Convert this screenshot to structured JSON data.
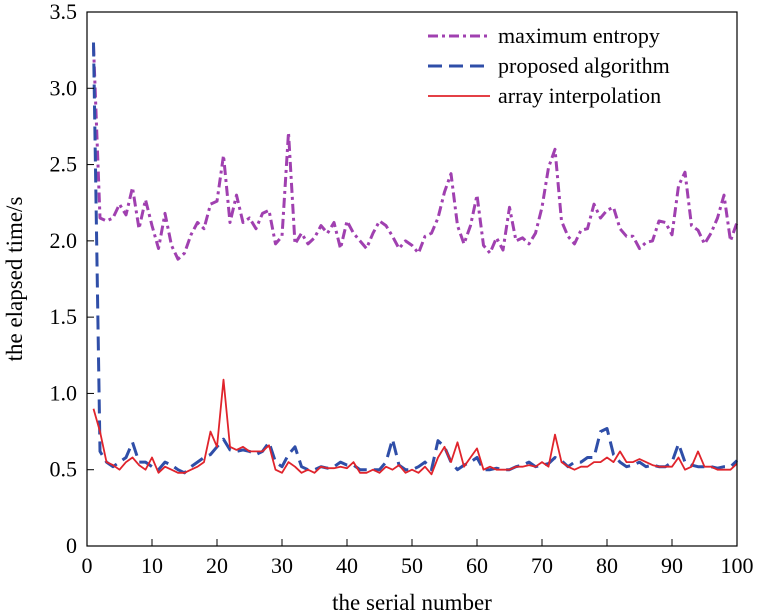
{
  "chart_data": {
    "type": "line",
    "title": "",
    "xlabel": "the serial number",
    "ylabel": "the elapsed time/s",
    "xlim": [
      0,
      100
    ],
    "ylim": [
      0,
      3.5
    ],
    "xticks": [
      0,
      10,
      20,
      30,
      40,
      50,
      60,
      70,
      80,
      90,
      100
    ],
    "xtick_labels": [
      "0",
      "10",
      "20",
      "30",
      "40",
      "50",
      "60",
      "70",
      "80",
      "90",
      "100"
    ],
    "yticks": [
      0,
      0.5,
      1.0,
      1.5,
      2.0,
      2.5,
      3.0,
      3.5
    ],
    "ytick_labels": [
      "0",
      "0.5",
      "1.0",
      "1.5",
      "2.0",
      "2.5",
      "3.0",
      "3.5"
    ],
    "grid": false,
    "legend": "top-right",
    "x": [
      1,
      2,
      3,
      4,
      5,
      6,
      7,
      8,
      9,
      10,
      11,
      12,
      13,
      14,
      15,
      16,
      17,
      18,
      19,
      20,
      21,
      22,
      23,
      24,
      25,
      26,
      27,
      28,
      29,
      30,
      31,
      32,
      33,
      34,
      35,
      36,
      37,
      38,
      39,
      40,
      41,
      42,
      43,
      44,
      45,
      46,
      47,
      48,
      49,
      50,
      51,
      52,
      53,
      54,
      55,
      56,
      57,
      58,
      59,
      60,
      61,
      62,
      63,
      64,
      65,
      66,
      67,
      68,
      69,
      70,
      71,
      72,
      73,
      74,
      75,
      76,
      77,
      78,
      79,
      80,
      81,
      82,
      83,
      84,
      85,
      86,
      87,
      88,
      89,
      90,
      91,
      92,
      93,
      94,
      95,
      96,
      97,
      98,
      99,
      100
    ],
    "series": [
      {
        "name": "maximum entropy",
        "color": "#a040b0",
        "dash": "dashdot",
        "values": [
          3.28,
          2.15,
          2.13,
          2.15,
          2.24,
          2.17,
          2.35,
          2.08,
          2.27,
          2.1,
          1.95,
          2.18,
          1.97,
          1.88,
          1.92,
          2.04,
          2.12,
          2.08,
          2.24,
          2.26,
          2.56,
          2.12,
          2.3,
          2.12,
          2.15,
          2.08,
          2.18,
          2.2,
          1.98,
          2.03,
          2.71,
          1.98,
          2.05,
          1.98,
          2.02,
          2.1,
          2.05,
          2.12,
          1.95,
          2.13,
          2.05,
          2.0,
          1.95,
          2.05,
          2.13,
          2.1,
          2.03,
          1.95,
          2.0,
          1.97,
          1.92,
          2.03,
          2.05,
          2.15,
          2.32,
          2.44,
          2.1,
          1.98,
          2.1,
          2.3,
          1.97,
          1.92,
          2.02,
          1.94,
          2.22,
          2.0,
          2.02,
          1.98,
          2.05,
          2.22,
          2.48,
          2.6,
          2.13,
          2.03,
          1.98,
          2.07,
          2.08,
          2.24,
          2.15,
          2.2,
          2.22,
          2.08,
          2.03,
          2.03,
          1.95,
          1.99,
          2.0,
          2.13,
          2.12,
          2.04,
          2.36,
          2.45,
          2.1,
          2.07,
          1.98,
          2.05,
          2.15,
          2.3,
          2.0,
          2.12
        ]
      },
      {
        "name": "proposed algorithm",
        "color": "#2f4ea8",
        "dash": "dashed",
        "values": [
          3.3,
          0.62,
          0.55,
          0.52,
          0.55,
          0.58,
          0.68,
          0.55,
          0.55,
          0.52,
          0.5,
          0.55,
          0.53,
          0.5,
          0.48,
          0.52,
          0.55,
          0.58,
          0.6,
          0.65,
          0.7,
          0.63,
          0.62,
          0.63,
          0.62,
          0.6,
          0.62,
          0.68,
          0.55,
          0.52,
          0.6,
          0.65,
          0.52,
          0.5,
          0.5,
          0.52,
          0.51,
          0.52,
          0.55,
          0.53,
          0.53,
          0.5,
          0.5,
          0.5,
          0.5,
          0.55,
          0.7,
          0.53,
          0.5,
          0.5,
          0.52,
          0.55,
          0.5,
          0.69,
          0.65,
          0.55,
          0.5,
          0.53,
          0.55,
          0.58,
          0.5,
          0.5,
          0.51,
          0.5,
          0.5,
          0.52,
          0.53,
          0.55,
          0.52,
          0.53,
          0.54,
          0.58,
          0.56,
          0.52,
          0.55,
          0.55,
          0.58,
          0.58,
          0.75,
          0.77,
          0.6,
          0.55,
          0.52,
          0.53,
          0.55,
          0.52,
          0.53,
          0.52,
          0.52,
          0.55,
          0.67,
          0.55,
          0.53,
          0.52,
          0.52,
          0.52,
          0.51,
          0.52,
          0.52,
          0.56
        ]
      },
      {
        "name": "array interpolation",
        "color": "#e0242c",
        "dash": "solid",
        "values": [
          0.9,
          0.75,
          0.55,
          0.53,
          0.5,
          0.55,
          0.58,
          0.53,
          0.5,
          0.58,
          0.48,
          0.52,
          0.5,
          0.48,
          0.48,
          0.5,
          0.52,
          0.55,
          0.75,
          0.65,
          1.09,
          0.65,
          0.63,
          0.65,
          0.62,
          0.62,
          0.62,
          0.66,
          0.5,
          0.48,
          0.55,
          0.52,
          0.48,
          0.5,
          0.48,
          0.52,
          0.51,
          0.51,
          0.52,
          0.51,
          0.55,
          0.48,
          0.48,
          0.5,
          0.48,
          0.52,
          0.5,
          0.53,
          0.48,
          0.5,
          0.48,
          0.52,
          0.47,
          0.58,
          0.65,
          0.55,
          0.68,
          0.52,
          0.58,
          0.64,
          0.5,
          0.52,
          0.5,
          0.5,
          0.5,
          0.52,
          0.52,
          0.53,
          0.52,
          0.55,
          0.52,
          0.73,
          0.55,
          0.52,
          0.5,
          0.52,
          0.52,
          0.55,
          0.55,
          0.58,
          0.55,
          0.62,
          0.55,
          0.55,
          0.57,
          0.55,
          0.53,
          0.52,
          0.52,
          0.52,
          0.58,
          0.5,
          0.52,
          0.62,
          0.52,
          0.52,
          0.5,
          0.5,
          0.5,
          0.54
        ]
      }
    ]
  }
}
